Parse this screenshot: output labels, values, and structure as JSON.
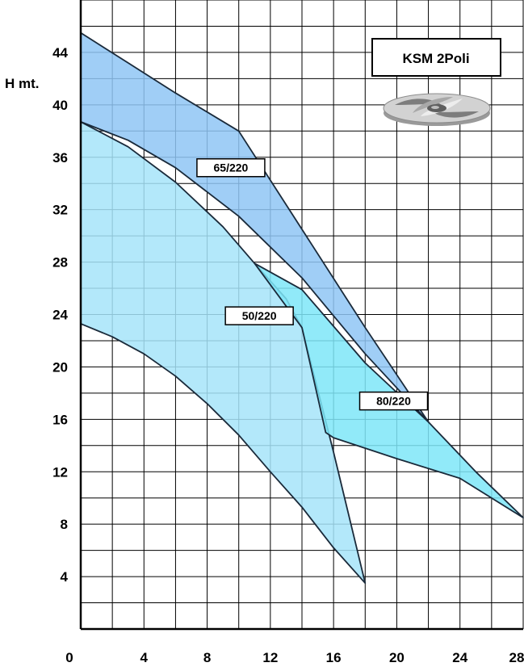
{
  "chart_data": {
    "type": "area",
    "title": "KSM 2Poli",
    "ylabel": "H mt.",
    "xlabel": "",
    "xlim": [
      0,
      28
    ],
    "ylim": [
      0,
      48
    ],
    "x_ticks": [
      0,
      4,
      8,
      12,
      16,
      20,
      24,
      28
    ],
    "y_ticks": [
      4,
      8,
      12,
      16,
      20,
      24,
      28,
      32,
      36,
      40,
      44
    ],
    "grid": true,
    "series": [
      {
        "name": "65/220",
        "color": "#8fc6f5",
        "label_at": [
          9.5,
          35.2
        ],
        "polygon": [
          [
            0,
            45.5
          ],
          [
            3,
            43.2
          ],
          [
            6,
            40.9
          ],
          [
            10,
            38
          ],
          [
            14,
            30.5
          ],
          [
            18,
            23
          ],
          [
            22,
            15.8
          ],
          [
            18,
            21
          ],
          [
            14,
            26.8
          ],
          [
            10,
            31.5
          ],
          [
            6,
            35.2
          ],
          [
            3,
            37.3
          ],
          [
            0,
            38.7
          ]
        ]
      },
      {
        "name": "50/220",
        "color": "#a6e4f9",
        "label_at": [
          11.3,
          23.9
        ],
        "polygon": [
          [
            0,
            38.7
          ],
          [
            3,
            36.8
          ],
          [
            6,
            34.1
          ],
          [
            9,
            30.7
          ],
          [
            11,
            27.9
          ],
          [
            13,
            25.2
          ],
          [
            14,
            23
          ],
          [
            16,
            13.5
          ],
          [
            18,
            3.5
          ],
          [
            16,
            6.2
          ],
          [
            14,
            9.3
          ],
          [
            12,
            12
          ],
          [
            10,
            14.8
          ],
          [
            8,
            17.2
          ],
          [
            6,
            19.3
          ],
          [
            4,
            21
          ],
          [
            2,
            22.3
          ],
          [
            0,
            23.3
          ]
        ]
      },
      {
        "name": "80/220",
        "color": "#7ee6f8",
        "label_at": [
          19.8,
          17.4
        ],
        "polygon": [
          [
            11,
            27.9
          ],
          [
            14,
            25.9
          ],
          [
            18,
            20.3
          ],
          [
            22,
            15.8
          ],
          [
            25,
            12
          ],
          [
            28,
            8.5
          ],
          [
            24,
            11.5
          ],
          [
            20,
            13
          ],
          [
            16,
            14.6
          ],
          [
            15.5,
            15
          ],
          [
            14,
            23
          ]
        ]
      }
    ]
  }
}
